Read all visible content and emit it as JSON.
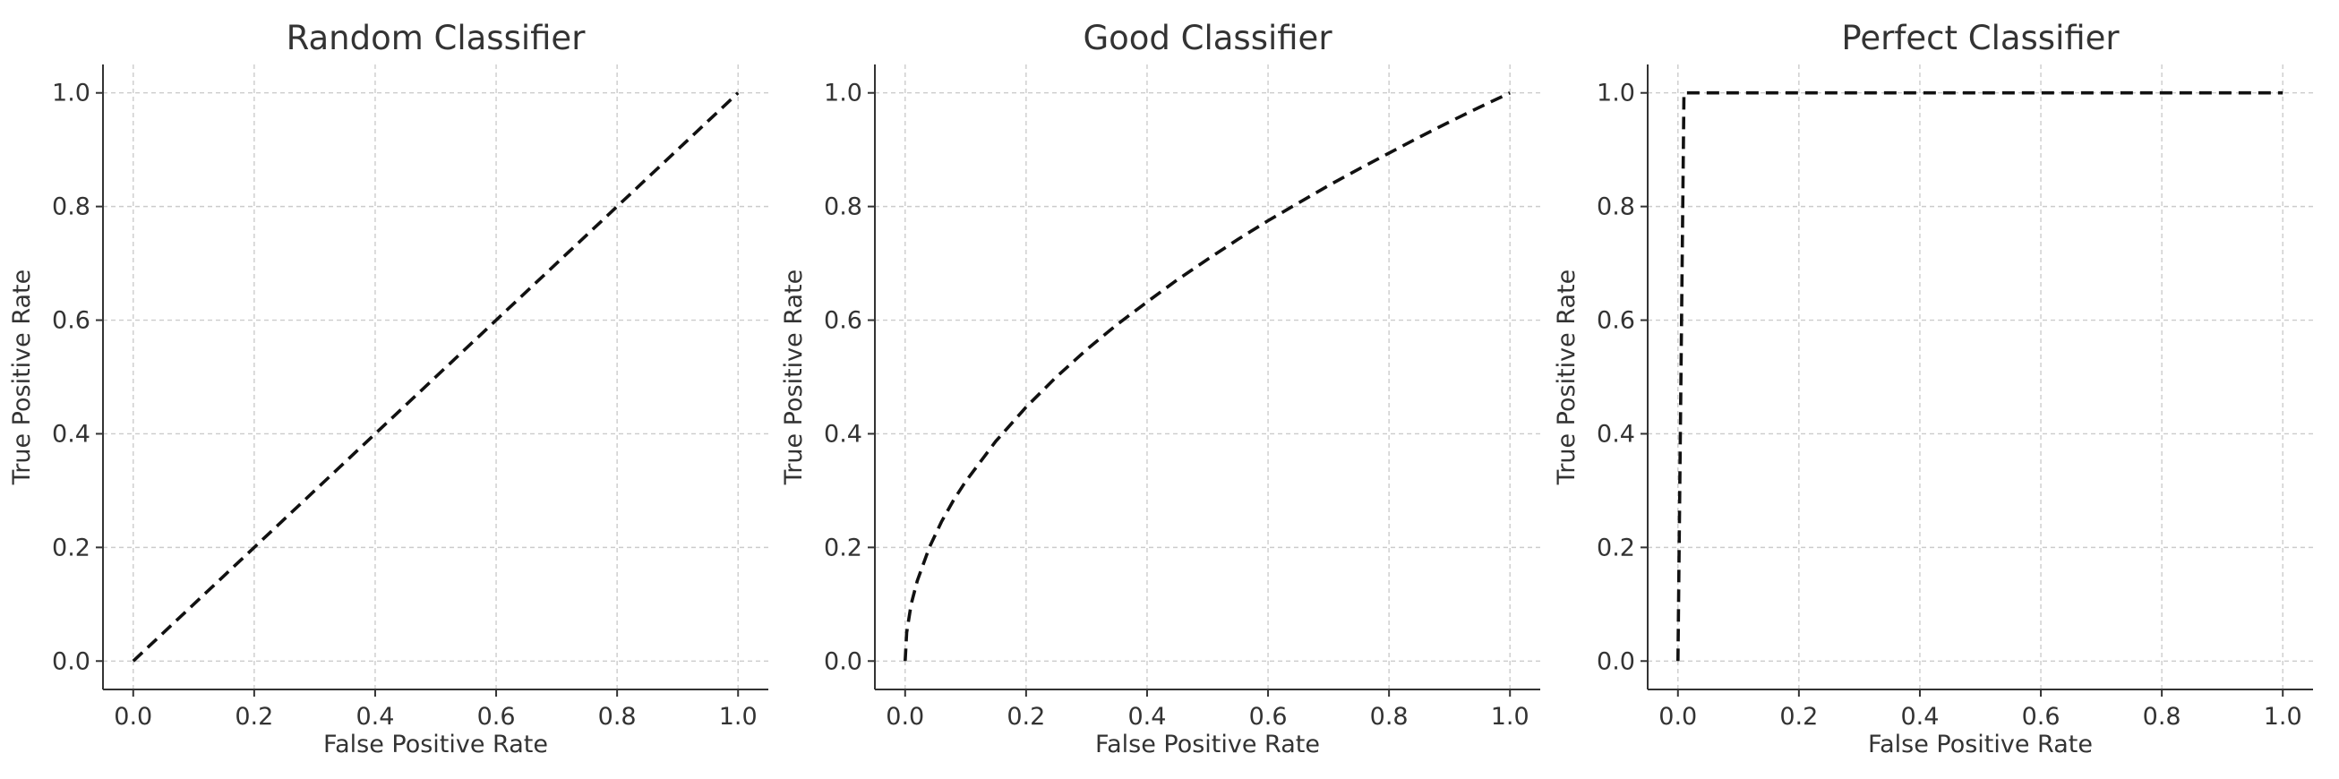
{
  "chart_data": [
    {
      "type": "line",
      "title": "Random Classifier",
      "xlabel": "False Positive Rate",
      "ylabel": "True Positive Rate",
      "xlim": [
        -0.05,
        1.05
      ],
      "ylim": [
        -0.05,
        1.05
      ],
      "xticks": [
        "0.0",
        "0.2",
        "0.4",
        "0.6",
        "0.8",
        "1.0"
      ],
      "yticks": [
        "0.0",
        "0.2",
        "0.4",
        "0.6",
        "0.8",
        "1.0"
      ],
      "grid": true,
      "line_style": "dashed",
      "line_color": "#111111",
      "series": [
        {
          "x": [
            0.0,
            1.0
          ],
          "y": [
            0.0,
            1.0
          ]
        }
      ]
    },
    {
      "type": "line",
      "title": "Good Classifier",
      "xlabel": "False Positive Rate",
      "ylabel": "True Positive Rate",
      "xlim": [
        -0.05,
        1.05
      ],
      "ylim": [
        -0.05,
        1.05
      ],
      "xticks": [
        "0.0",
        "0.2",
        "0.4",
        "0.6",
        "0.8",
        "1.0"
      ],
      "yticks": [
        "0.0",
        "0.2",
        "0.4",
        "0.6",
        "0.8",
        "1.0"
      ],
      "grid": true,
      "line_style": "dashed",
      "line_color": "#111111",
      "series": [
        {
          "x": [
            0.0,
            0.0025,
            0.01,
            0.02,
            0.04,
            0.06,
            0.08,
            0.1,
            0.15,
            0.2,
            0.25,
            0.3,
            0.35,
            0.4,
            0.45,
            0.5,
            0.55,
            0.6,
            0.65,
            0.7,
            0.75,
            0.8,
            0.85,
            0.9,
            0.95,
            1.0
          ],
          "y": [
            0.0,
            0.05,
            0.1,
            0.141,
            0.2,
            0.245,
            0.283,
            0.316,
            0.387,
            0.447,
            0.5,
            0.548,
            0.592,
            0.632,
            0.671,
            0.707,
            0.742,
            0.775,
            0.806,
            0.837,
            0.866,
            0.894,
            0.922,
            0.949,
            0.975,
            1.0
          ]
        }
      ]
    },
    {
      "type": "line",
      "title": "Perfect Classifier",
      "xlabel": "False Positive Rate",
      "ylabel": "True Positive Rate",
      "xlim": [
        -0.05,
        1.05
      ],
      "ylim": [
        -0.05,
        1.05
      ],
      "xticks": [
        "0.0",
        "0.2",
        "0.4",
        "0.6",
        "0.8",
        "1.0"
      ],
      "yticks": [
        "0.0",
        "0.2",
        "0.4",
        "0.6",
        "0.8",
        "1.0"
      ],
      "grid": true,
      "line_style": "dashed",
      "line_color": "#111111",
      "series": [
        {
          "x": [
            0.0,
            0.01,
            1.0
          ],
          "y": [
            0.0,
            1.0,
            1.0
          ]
        }
      ]
    }
  ]
}
